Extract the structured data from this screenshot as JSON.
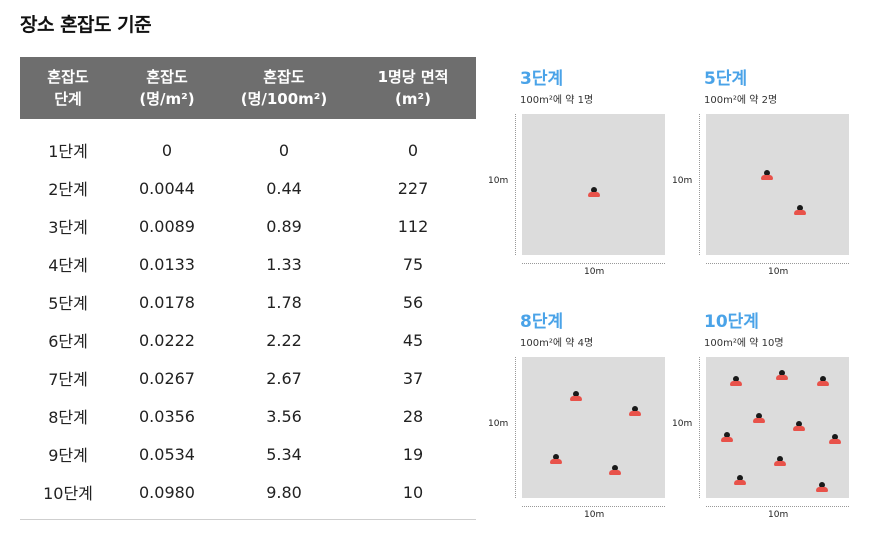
{
  "page_title": "장소 혼잡도 기준",
  "table": {
    "headers": [
      [
        "혼잡도",
        "단계"
      ],
      [
        "혼잡도",
        "(명/m²)"
      ],
      [
        "혼잡도",
        "(명/100m²)"
      ],
      [
        "1명당 면적",
        "(m²)"
      ]
    ],
    "rows": [
      [
        "1단계",
        "0",
        "0",
        "0"
      ],
      [
        "2단계",
        "0.0044",
        "0.44",
        "227"
      ],
      [
        "3단계",
        "0.0089",
        "0.89",
        "112"
      ],
      [
        "4단계",
        "0.0133",
        "1.33",
        "75"
      ],
      [
        "5단계",
        "0.0178",
        "1.78",
        "56"
      ],
      [
        "6단계",
        "0.0222",
        "2.22",
        "45"
      ],
      [
        "7단계",
        "0.0267",
        "2.67",
        "37"
      ],
      [
        "8단계",
        "0.0356",
        "3.56",
        "28"
      ],
      [
        "9단계",
        "0.0534",
        "5.34",
        "19"
      ],
      [
        "10단계",
        "0.0980",
        "9.80",
        "10"
      ]
    ]
  },
  "panels": [
    {
      "title": "3단계",
      "subtitle": "100m²에 약 1명",
      "dim_y": "10m",
      "dim_x": "10m",
      "people": [
        [
          0.5,
          0.55
        ]
      ]
    },
    {
      "title": "5단계",
      "subtitle": "100m²에 약 2명",
      "dim_y": "10m",
      "dim_x": "10m",
      "people": [
        [
          0.43,
          0.43
        ],
        [
          0.66,
          0.68
        ]
      ]
    },
    {
      "title": "8단계",
      "subtitle": "100m²에 약 4명",
      "dim_y": "10m",
      "dim_x": "10m",
      "people": [
        [
          0.38,
          0.28
        ],
        [
          0.79,
          0.38
        ],
        [
          0.24,
          0.72
        ],
        [
          0.65,
          0.8
        ]
      ]
    },
    {
      "title": "10단계",
      "subtitle": "100m²에 약 10명",
      "dim_y": "10m",
      "dim_x": "10m",
      "people": [
        [
          0.21,
          0.17
        ],
        [
          0.53,
          0.13
        ],
        [
          0.82,
          0.17
        ],
        [
          0.37,
          0.43
        ],
        [
          0.65,
          0.49
        ],
        [
          0.15,
          0.57
        ],
        [
          0.9,
          0.58
        ],
        [
          0.52,
          0.74
        ],
        [
          0.24,
          0.87
        ],
        [
          0.81,
          0.92
        ]
      ]
    }
  ],
  "colors": {
    "header_bg": "#6e6e6e",
    "accent": "#4aa3e8",
    "person_body": "#e8524a",
    "square_bg": "#dcdcdc"
  }
}
